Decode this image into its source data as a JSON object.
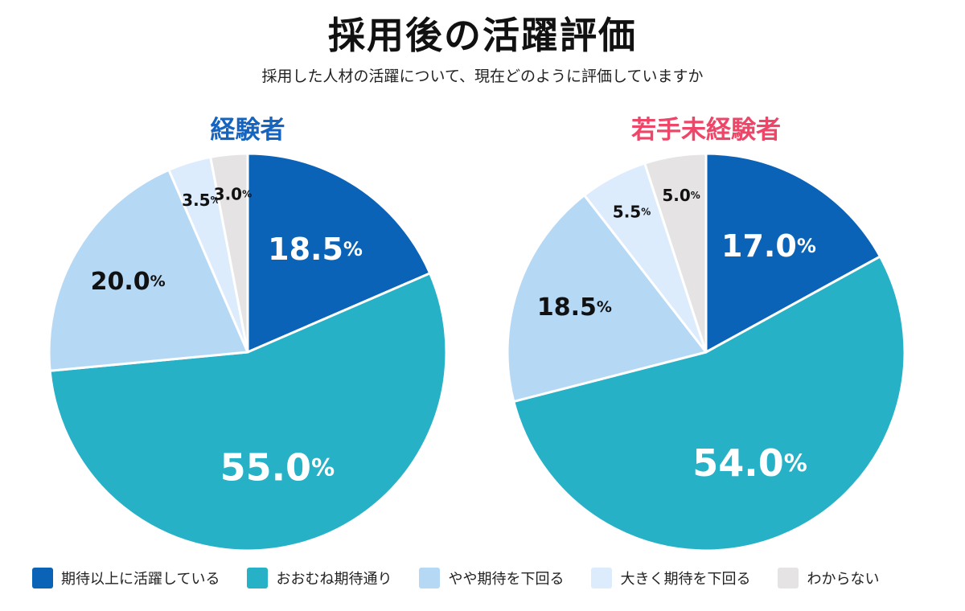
{
  "header": {
    "title": "採用後の活躍評価",
    "subtitle": "採用した人材の活躍について、現在どのように評価していますか"
  },
  "chart_data": [
    {
      "type": "pie",
      "title": "経験者",
      "title_color": "#1565c0",
      "categories": [
        "期待以上に活躍している",
        "おおむね期待通り",
        "やや期待を下回る",
        "大きく期待を下回る",
        "わからない"
      ],
      "values": [
        18.5,
        55.0,
        20.0,
        3.5,
        3.0
      ],
      "labels": [
        "18.5%",
        "55.0%",
        "20.0%",
        "3.5%",
        "3.0%"
      ]
    },
    {
      "type": "pie",
      "title": "若手未経験者",
      "title_color": "#ee4668",
      "categories": [
        "期待以上に活躍している",
        "おおむね期待通り",
        "やや期待を下回る",
        "大きく期待を下回る",
        "わからない"
      ],
      "values": [
        17.0,
        54.0,
        18.5,
        5.5,
        5.0
      ],
      "labels": [
        "17.0%",
        "54.0%",
        "18.5%",
        "5.5%",
        "5.0%"
      ]
    }
  ],
  "legend": {
    "placement": "bottom",
    "items": [
      {
        "label": "期待以上に活躍している",
        "color": "#0b63b8"
      },
      {
        "label": "おおむね期待通り",
        "color": "#27b1c7"
      },
      {
        "label": "やや期待を下回る",
        "color": "#b5d8f5"
      },
      {
        "label": "大きく期待を下回る",
        "color": "#dcecfc"
      },
      {
        "label": "わからない",
        "color": "#e5e3e3"
      }
    ]
  }
}
